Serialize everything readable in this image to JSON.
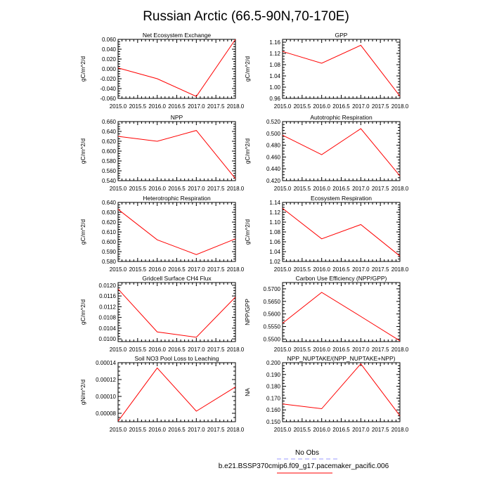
{
  "title": "Russian Arctic (66.5-90N,70-170E)",
  "legend": {
    "obs_label": "No Obs",
    "obs_color": "#9a9aff",
    "model_label": "b.e21.BSSP370cmip6.f09_g17.pacemaker_pacific.006",
    "model_color": "#ff0000"
  },
  "chart_data": [
    {
      "type": "line",
      "title": "Net Ecosystem Exchange",
      "ylabel": "gC/m^2/d",
      "x": [
        2015,
        2016,
        2017,
        2018
      ],
      "y": [
        0.002,
        -0.02,
        -0.056,
        0.06
      ],
      "xlim": [
        2015,
        2018
      ],
      "ylim": [
        -0.06,
        0.06
      ],
      "xticks": [
        "2015.0",
        "2015.5",
        "2016.0",
        "2016.5",
        "2017.0",
        "2017.5",
        "2018.0"
      ],
      "yticks": [
        "-0.060",
        "-0.040",
        "-0.020",
        "0.000",
        "0.020",
        "0.040",
        "0.060"
      ]
    },
    {
      "type": "line",
      "title": "GPP",
      "ylabel": "gC/m^2/d",
      "x": [
        2015,
        2016,
        2017,
        2018
      ],
      "y": [
        1.127,
        1.085,
        1.149,
        0.968
      ],
      "xlim": [
        2015,
        2018
      ],
      "ylim": [
        0.96,
        1.17
      ],
      "xticks": [
        "2015.0",
        "2015.5",
        "2016.0",
        "2016.5",
        "2017.0",
        "2017.5",
        "2018.0"
      ],
      "yticks": [
        "0.96",
        "1.00",
        "1.04",
        "1.08",
        "1.12",
        "1.16"
      ]
    },
    {
      "type": "line",
      "title": "NPP",
      "ylabel": "gC/m^2/d",
      "x": [
        2015,
        2016,
        2017,
        2018
      ],
      "y": [
        0.63,
        0.62,
        0.642,
        0.544
      ],
      "xlim": [
        2015,
        2018
      ],
      "ylim": [
        0.54,
        0.66
      ],
      "xticks": [
        "2015.0",
        "2015.5",
        "2016.0",
        "2016.5",
        "2017.0",
        "2017.5",
        "2018.0"
      ],
      "yticks": [
        "0.540",
        "0.560",
        "0.580",
        "0.600",
        "0.620",
        "0.640",
        "0.660"
      ]
    },
    {
      "type": "line",
      "title": "Autotrophic Respiration",
      "ylabel": "gC/m^2/d",
      "x": [
        2015,
        2016,
        2017,
        2018
      ],
      "y": [
        0.497,
        0.464,
        0.508,
        0.428
      ],
      "xlim": [
        2015,
        2018
      ],
      "ylim": [
        0.42,
        0.52
      ],
      "xticks": [
        "2015.0",
        "2015.5",
        "2016.0",
        "2016.5",
        "2017.0",
        "2017.5",
        "2018.0"
      ],
      "yticks": [
        "0.420",
        "0.440",
        "0.460",
        "0.480",
        "0.500",
        "0.520"
      ]
    },
    {
      "type": "line",
      "title": "Heterotrophic Respiration",
      "ylabel": "gC/m^2/d",
      "x": [
        2015,
        2016,
        2017,
        2018
      ],
      "y": [
        0.633,
        0.602,
        0.587,
        0.603
      ],
      "xlim": [
        2015,
        2018
      ],
      "ylim": [
        0.58,
        0.64
      ],
      "xticks": [
        "2015.0",
        "2015.5",
        "2016.0",
        "2016.5",
        "2017.0",
        "2017.5",
        "2018.0"
      ],
      "yticks": [
        "0.580",
        "0.590",
        "0.600",
        "0.610",
        "0.620",
        "0.630",
        "0.640"
      ]
    },
    {
      "type": "line",
      "title": "Ecosystem Respiration",
      "ylabel": "gC/m^2/d",
      "x": [
        2015,
        2016,
        2017,
        2018
      ],
      "y": [
        1.128,
        1.066,
        1.095,
        1.031
      ],
      "xlim": [
        2015,
        2018
      ],
      "ylim": [
        1.02,
        1.14
      ],
      "xticks": [
        "2015.0",
        "2015.5",
        "2016.0",
        "2016.5",
        "2017.0",
        "2017.5",
        "2018.0"
      ],
      "yticks": [
        "1.02",
        "1.04",
        "1.06",
        "1.08",
        "1.10",
        "1.12",
        "1.14"
      ]
    },
    {
      "type": "line",
      "title": "Gridcell Surface CH4 Flux",
      "ylabel": "gC/m^2/d",
      "x": [
        2015,
        2016,
        2017,
        2018
      ],
      "y": [
        0.01186,
        0.01026,
        0.01006,
        0.01156
      ],
      "xlim": [
        2015,
        2018
      ],
      "ylim": [
        0.0099,
        0.0121
      ],
      "xticks": [
        "2015.0",
        "2015.5",
        "2016.0",
        "2016.5",
        "2017.0",
        "2017.5",
        "2018.0"
      ],
      "yticks": [
        "0.0100",
        "0.0104",
        "0.0108",
        "0.0112",
        "0.0116",
        "0.0120"
      ]
    },
    {
      "type": "line",
      "title": "Carbon Use Efficiency (NPP/GPP)",
      "ylabel": "NPP/GPP",
      "x": [
        2015,
        2016,
        2017,
        2018
      ],
      "y": [
        0.5563,
        0.5686,
        0.559,
        0.5493
      ],
      "xlim": [
        2015,
        2018
      ],
      "ylim": [
        0.549,
        0.5725
      ],
      "xticks": [
        "2015.0",
        "2015.5",
        "2016.0",
        "2016.5",
        "2017.0",
        "2017.5",
        "2018.0"
      ],
      "yticks": [
        "0.5500",
        "0.5550",
        "0.5600",
        "0.5650",
        "0.5700"
      ]
    },
    {
      "type": "line",
      "title": "Soil NO3 Pool Loss to Leaching",
      "ylabel": "gN/m^2/d",
      "x": [
        2015,
        2016,
        2017,
        2018
      ],
      "y": [
        7.07e-05,
        0.0001337,
        8.25e-05,
        0.0001112
      ],
      "xlim": [
        2015,
        2018
      ],
      "ylim": [
        7e-05,
        0.00014
      ],
      "xticks": [
        "2015.0",
        "2015.5",
        "2016.0",
        "2016.5",
        "2017.0",
        "2017.5",
        "2018.0"
      ],
      "yticks": [
        "0.00008",
        "0.00010",
        "0.00012",
        "0.00014"
      ]
    },
    {
      "type": "line",
      "title": "NPP_NUPTAKE/(NPP_NUPTAKE+NPP)",
      "ylabel": "NA",
      "x": [
        2015,
        2016,
        2017,
        2018
      ],
      "y": [
        0.165,
        0.161,
        0.199,
        0.155
      ],
      "xlim": [
        2015,
        2018
      ],
      "ylim": [
        0.15,
        0.2
      ],
      "xticks": [
        "2015.0",
        "2015.5",
        "2016.0",
        "2016.5",
        "2017.0",
        "2017.5",
        "2018.0"
      ],
      "yticks": [
        "0.150",
        "0.160",
        "0.170",
        "0.180",
        "0.190",
        "0.200"
      ]
    }
  ]
}
